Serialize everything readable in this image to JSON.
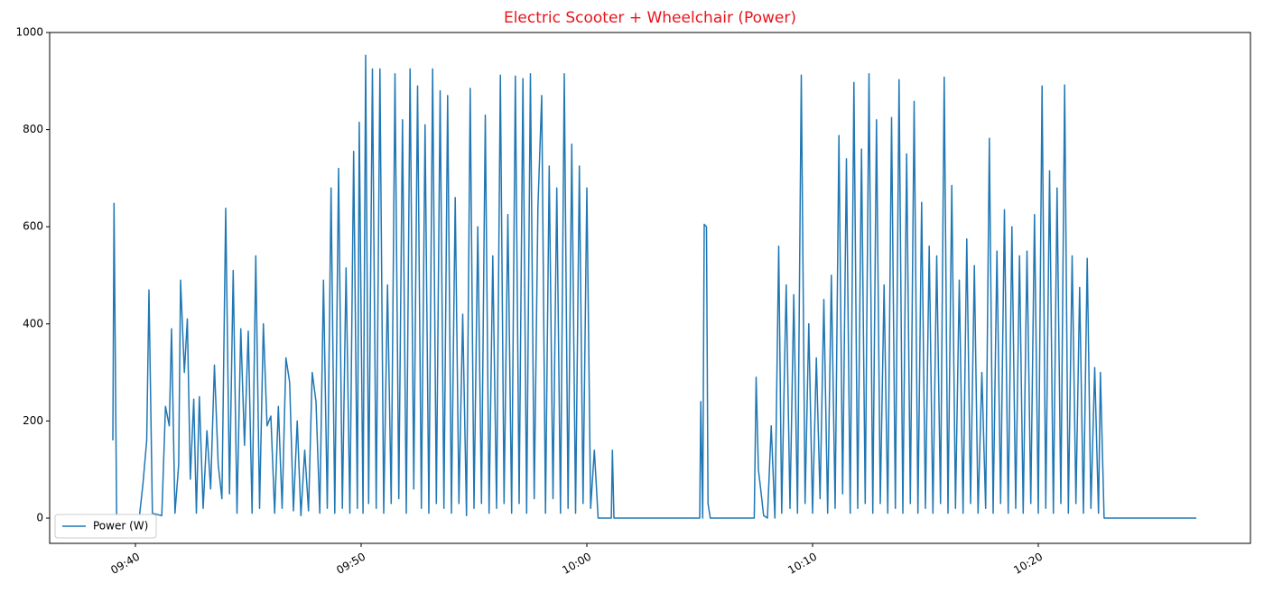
{
  "chart_data": {
    "type": "line",
    "title": "Electric Scooter + Wheelchair (Power)",
    "title_color": "#e8141b",
    "x": [
      "09:39:00",
      "09:39:03",
      "09:39:10",
      "09:40:10",
      "09:40:20",
      "09:40:30",
      "09:40:36",
      "09:40:45",
      "09:41:10",
      "09:41:20",
      "09:41:30",
      "09:41:36",
      "09:41:45",
      "09:41:55",
      "09:42:00",
      "09:42:10",
      "09:42:18",
      "09:42:26",
      "09:42:35",
      "09:42:42",
      "09:42:50",
      "09:43:00",
      "09:43:10",
      "09:43:20",
      "09:43:30",
      "09:43:40",
      "09:43:50",
      "09:44:00",
      "09:44:10",
      "09:44:20",
      "09:44:30",
      "09:44:40",
      "09:44:50",
      "09:45:00",
      "09:45:10",
      "09:45:20",
      "09:45:30",
      "09:45:40",
      "09:45:50",
      "09:46:00",
      "09:46:10",
      "09:46:20",
      "09:46:30",
      "09:46:40",
      "09:46:50",
      "09:47:00",
      "09:47:10",
      "09:47:20",
      "09:47:30",
      "09:47:40",
      "09:47:50",
      "09:48:00",
      "09:48:10",
      "09:48:20",
      "09:48:30",
      "09:48:40",
      "09:48:50",
      "09:49:00",
      "09:49:10",
      "09:49:20",
      "09:49:30",
      "09:49:40",
      "09:49:50",
      "09:49:55",
      "09:50:05",
      "09:50:12",
      "09:50:20",
      "09:50:30",
      "09:50:40",
      "09:50:50",
      "09:51:00",
      "09:51:10",
      "09:51:20",
      "09:51:30",
      "09:51:40",
      "09:51:50",
      "09:52:00",
      "09:52:10",
      "09:52:20",
      "09:52:30",
      "09:52:40",
      "09:52:50",
      "09:53:00",
      "09:53:10",
      "09:53:20",
      "09:53:30",
      "09:53:40",
      "09:53:50",
      "09:54:00",
      "09:54:10",
      "09:54:20",
      "09:54:30",
      "09:54:40",
      "09:54:50",
      "09:55:00",
      "09:55:10",
      "09:55:20",
      "09:55:30",
      "09:55:40",
      "09:55:50",
      "09:56:00",
      "09:56:10",
      "09:56:20",
      "09:56:30",
      "09:56:40",
      "09:56:50",
      "09:57:00",
      "09:57:10",
      "09:57:20",
      "09:57:30",
      "09:57:40",
      "09:57:50",
      "09:58:00",
      "09:58:10",
      "09:58:20",
      "09:58:30",
      "09:58:40",
      "09:58:50",
      "09:59:00",
      "09:59:10",
      "09:59:20",
      "09:59:30",
      "09:59:40",
      "09:59:50",
      "10:00:00",
      "10:00:10",
      "10:00:20",
      "10:00:30",
      "10:01:05",
      "10:01:08",
      "10:01:12",
      "10:05:00",
      "10:05:03",
      "10:05:08",
      "10:05:12",
      "10:05:18",
      "10:05:22",
      "10:05:28",
      "10:07:25",
      "10:07:30",
      "10:07:36",
      "10:07:42",
      "10:07:50",
      "10:08:00",
      "10:08:10",
      "10:08:20",
      "10:08:30",
      "10:08:38",
      "10:08:45",
      "10:08:50",
      "10:09:00",
      "10:09:10",
      "10:09:20",
      "10:09:30",
      "10:09:40",
      "10:09:50",
      "10:10:00",
      "10:10:10",
      "10:10:20",
      "10:10:30",
      "10:10:40",
      "10:10:50",
      "10:11:00",
      "10:11:10",
      "10:11:20",
      "10:11:30",
      "10:11:40",
      "10:11:50",
      "10:12:00",
      "10:12:10",
      "10:12:20",
      "10:12:30",
      "10:12:40",
      "10:12:50",
      "10:13:00",
      "10:13:10",
      "10:13:20",
      "10:13:30",
      "10:13:40",
      "10:13:50",
      "10:14:00",
      "10:14:10",
      "10:14:20",
      "10:14:30",
      "10:14:40",
      "10:14:50",
      "10:15:00",
      "10:15:10",
      "10:15:20",
      "10:15:30",
      "10:15:40",
      "10:15:50",
      "10:16:00",
      "10:16:10",
      "10:16:20",
      "10:16:30",
      "10:16:40",
      "10:16:50",
      "10:17:00",
      "10:17:10",
      "10:17:20",
      "10:17:30",
      "10:17:40",
      "10:17:50",
      "10:18:00",
      "10:18:10",
      "10:18:20",
      "10:18:30",
      "10:18:40",
      "10:18:50",
      "10:19:00",
      "10:19:10",
      "10:19:20",
      "10:19:30",
      "10:19:40",
      "10:19:50",
      "10:20:00",
      "10:20:10",
      "10:20:20",
      "10:20:30",
      "10:20:40",
      "10:20:50",
      "10:21:00",
      "10:21:10",
      "10:21:20",
      "10:21:30",
      "10:21:40",
      "10:21:50",
      "10:22:00",
      "10:22:10",
      "10:22:20",
      "10:22:30",
      "10:22:40",
      "10:22:45",
      "10:22:55",
      "10:27:00"
    ],
    "series": [
      {
        "name": "Power (W)",
        "color": "#1f77b4",
        "values": [
          160,
          648,
          0,
          0,
          70,
          160,
          470,
          10,
          5,
          230,
          190,
          390,
          10,
          110,
          490,
          300,
          410,
          80,
          245,
          10,
          250,
          20,
          180,
          60,
          315,
          110,
          40,
          638,
          50,
          510,
          10,
          390,
          150,
          385,
          10,
          540,
          20,
          400,
          190,
          210,
          10,
          230,
          20,
          330,
          280,
          15,
          200,
          5,
          140,
          15,
          300,
          240,
          10,
          490,
          20,
          680,
          10,
          720,
          20,
          515,
          10,
          755,
          20,
          815,
          10,
          953,
          30,
          925,
          20,
          925,
          10,
          480,
          30,
          915,
          40,
          820,
          10,
          925,
          60,
          890,
          20,
          810,
          10,
          925,
          30,
          880,
          20,
          870,
          10,
          660,
          30,
          420,
          5,
          885,
          20,
          600,
          30,
          830,
          10,
          540,
          20,
          912,
          30,
          625,
          10,
          910,
          30,
          905,
          10,
          915,
          40,
          640,
          870,
          10,
          725,
          40,
          680,
          10,
          915,
          20,
          770,
          10,
          725,
          30,
          680,
          20,
          140,
          0,
          0,
          140,
          0,
          0,
          240,
          0,
          605,
          600,
          30,
          0,
          0,
          290,
          100,
          60,
          5,
          0,
          190,
          0,
          560,
          10,
          300,
          480,
          20,
          460,
          10,
          912,
          30,
          400,
          10,
          330,
          40,
          450,
          10,
          500,
          20,
          788,
          50,
          740,
          10,
          897,
          20,
          760,
          30,
          915,
          10,
          820,
          30,
          480,
          10,
          825,
          20,
          903,
          10,
          750,
          30,
          858,
          10,
          650,
          20,
          560,
          10,
          540,
          30,
          908,
          10,
          685,
          20,
          490,
          10,
          575,
          30,
          520,
          10,
          300,
          20,
          782,
          10,
          550,
          30,
          635,
          10,
          600,
          20,
          540,
          10,
          550,
          30,
          625,
          10,
          890,
          20,
          715,
          10,
          680,
          30,
          892,
          10,
          540,
          30,
          475,
          10,
          535,
          20,
          310,
          10,
          300,
          0,
          0
        ]
      }
    ],
    "xlim": [
      "09:36:12",
      "10:29:24"
    ],
    "xticks": [
      "09:40",
      "09:50",
      "10:00",
      "10:10",
      "10:20"
    ],
    "ylim": [
      -52,
      1000
    ],
    "yticks": [
      0,
      200,
      400,
      600,
      800,
      1000
    ],
    "legend": "lower left"
  }
}
